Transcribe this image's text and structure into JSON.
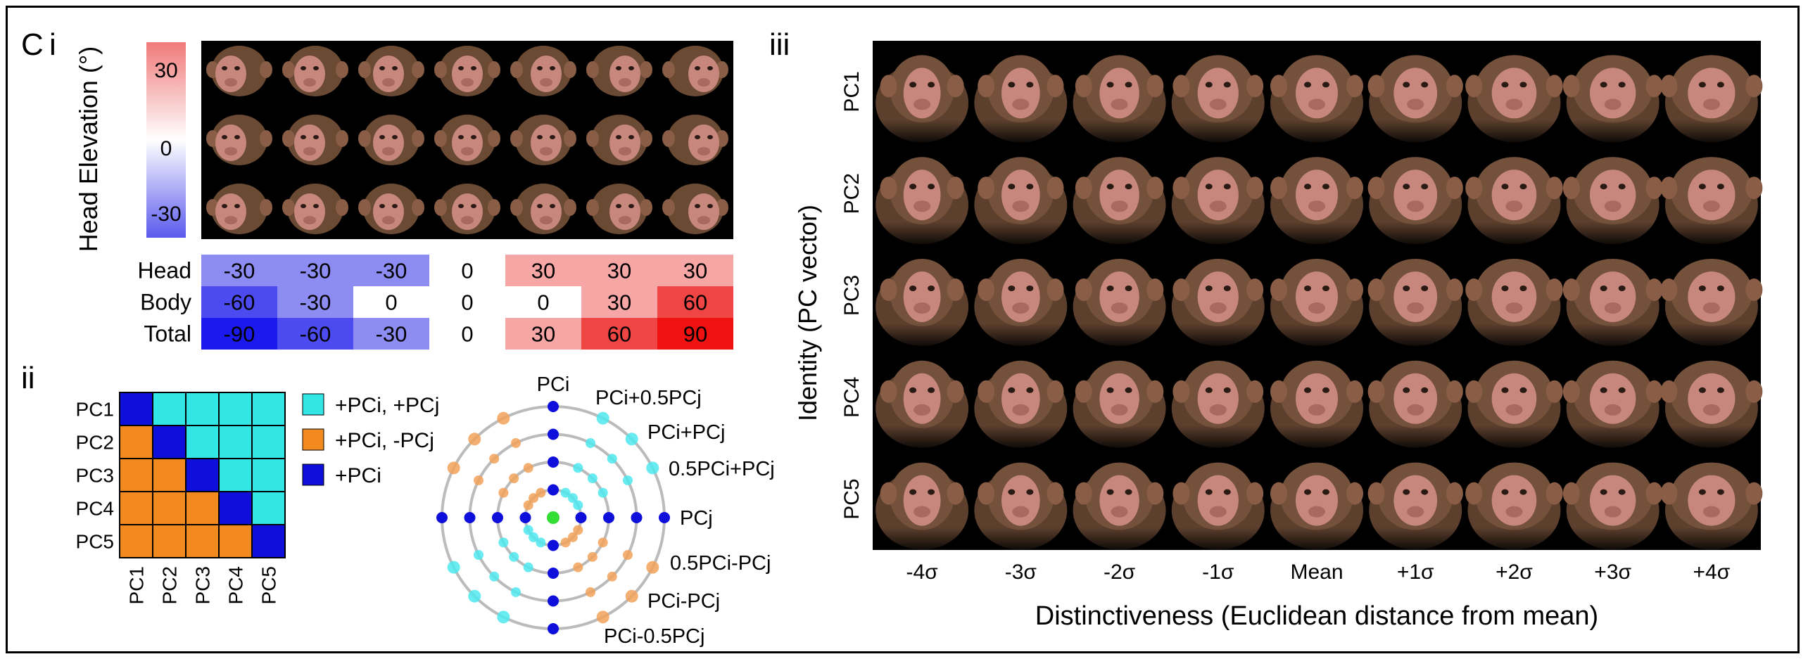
{
  "panel_labels": {
    "c": "C",
    "i": "i",
    "ii": "ii",
    "iii": "iii"
  },
  "colorbar": {
    "label": "Head Elevation (°)",
    "ticks": [
      "30",
      "0",
      "-30"
    ],
    "colors": {
      "top": "#f07a7a",
      "mid": "#ffffff",
      "bottom": "#5a5aee"
    }
  },
  "head_grid": {
    "rows": 3,
    "cols": 7,
    "background": "#000000",
    "fur": "#6b4a34",
    "face": "#c7877c"
  },
  "angle_table": {
    "rows": [
      {
        "label": "Head",
        "values": [
          "-30",
          "-30",
          "-30",
          "0",
          "30",
          "30",
          "30"
        ]
      },
      {
        "label": "Body",
        "values": [
          "-60",
          "-30",
          "0",
          "0",
          "0",
          "30",
          "60"
        ]
      },
      {
        "label": "Total",
        "values": [
          "-90",
          "-60",
          "-30",
          "0",
          "30",
          "60",
          "90"
        ]
      }
    ],
    "cell_colors": [
      [
        "#8c8cf3",
        "#8c8cf3",
        "#8c8cf3",
        "#ffffff",
        "#f7a6a6",
        "#f7a6a6",
        "#f7a6a6"
      ],
      [
        "#4b4bef",
        "#8c8cf3",
        "#ffffff",
        "#ffffff",
        "#ffffff",
        "#f7a6a6",
        "#f04545"
      ],
      [
        "#1a1aee",
        "#4b4bef",
        "#8c8cf3",
        "#ffffff",
        "#f7a6a6",
        "#f04545",
        "#f01111"
      ]
    ]
  },
  "pc_matrix": {
    "row_labels": [
      "PC1",
      "PC2",
      "PC3",
      "PC4",
      "PC5"
    ],
    "col_labels": [
      "PC1",
      "PC2",
      "PC3",
      "PC4",
      "PC5"
    ],
    "colors": {
      "upper": "#33e6e6",
      "lower": "#f28a1f",
      "diagonal": "#0f0fdc"
    }
  },
  "legend": [
    {
      "label": "+PCi, +PCj",
      "color": "#33e6e6"
    },
    {
      "label": "+PCi, -PCj",
      "color": "#f28a1f"
    },
    {
      "label": "+PCi",
      "color": "#0f0fdc"
    }
  ],
  "radial": {
    "labels": [
      "PCi",
      "PCi+0.5PCj",
      "PCi+PCj",
      "0.5PCi+PCj",
      "PCj",
      "0.5PCi-PCj",
      "PCi-PCj",
      "PCi-0.5PCj"
    ],
    "colors": {
      "ring": "#bbbbbb",
      "axis": "#0f0fdc",
      "same_sign": "#4ee8ee",
      "opposite_sign": "#f2a259",
      "center": "#33dd33"
    }
  },
  "identity_grid": {
    "rows_label": "Identity (PC vector)",
    "row_labels": [
      "PC1",
      "PC2",
      "PC3",
      "PC4",
      "PC5"
    ],
    "col_labels": [
      "-4σ",
      "-3σ",
      "-2σ",
      "-1σ",
      "Mean",
      "+1σ",
      "+2σ",
      "+3σ",
      "+4σ"
    ],
    "x_label": "Distinctiveness (Euclidean distance from mean)"
  }
}
